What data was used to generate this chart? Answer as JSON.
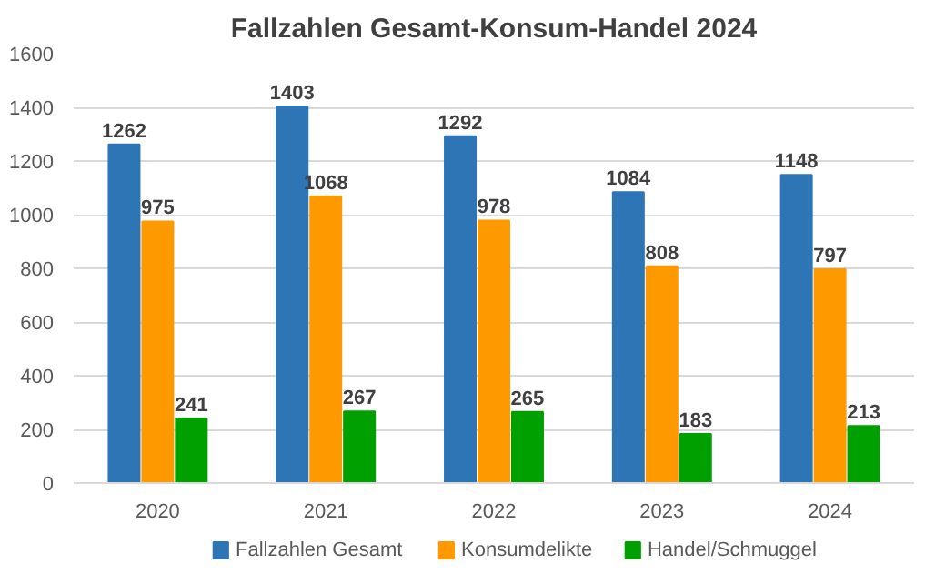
{
  "chart_data": {
    "type": "bar",
    "title": "Fallzahlen Gesamt-Konsum-Handel 2024",
    "categories": [
      "2020",
      "2021",
      "2022",
      "2023",
      "2024"
    ],
    "series": [
      {
        "name": "Fallzahlen Gesamt",
        "color": "#2e75b6",
        "values": [
          1262,
          1403,
          1292,
          1084,
          1148
        ]
      },
      {
        "name": "Konsumdelikte",
        "color": "#ff9900",
        "values": [
          975,
          1068,
          978,
          808,
          797
        ]
      },
      {
        "name": "Handel/Schmuggel",
        "color": "#00a000",
        "values": [
          241,
          267,
          265,
          183,
          213
        ]
      }
    ],
    "ylim": [
      0,
      1600
    ],
    "yticks": [
      0,
      200,
      400,
      600,
      800,
      1000,
      1200,
      1400,
      1600
    ],
    "grid": "y",
    "legend": "bottom",
    "data_labels": true
  }
}
